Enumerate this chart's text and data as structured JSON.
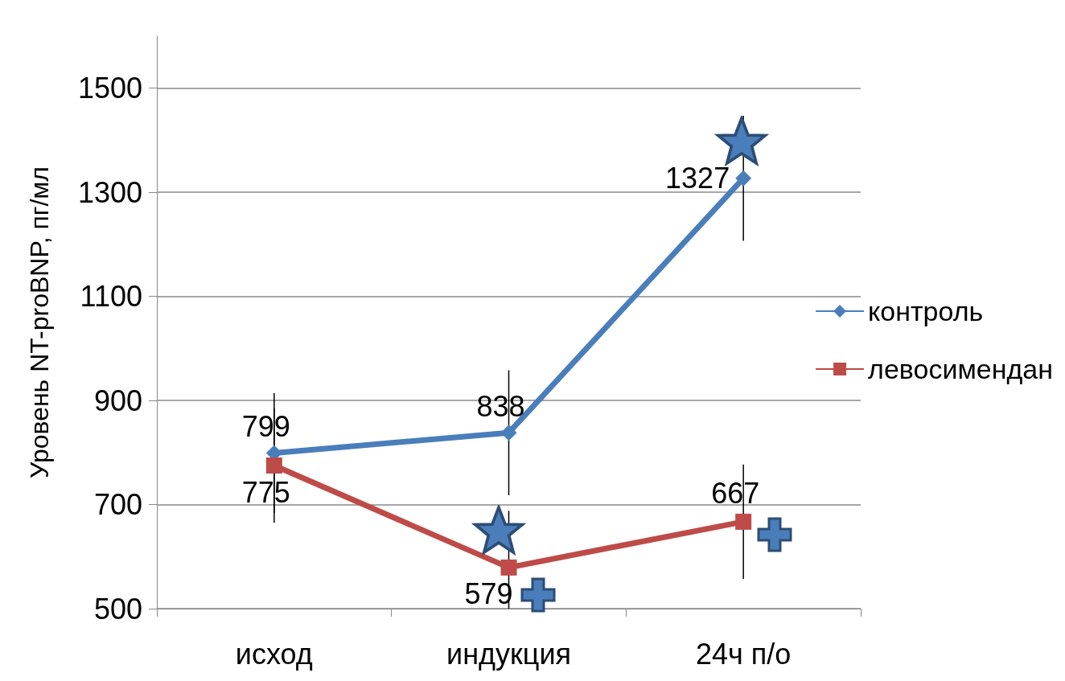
{
  "chart_data": {
    "type": "line",
    "ylabel": "Уровень NT-proBNP, пг/мл",
    "categories": [
      "исход",
      "индукция",
      "24ч п/о"
    ],
    "series": [
      {
        "name": "контроль",
        "color": "#4a7ebb",
        "marker": "diamond",
        "values": [
          799,
          838,
          1327
        ],
        "errors": [
          115,
          120,
          120
        ]
      },
      {
        "name": "левосимендан",
        "color": "#be4b48",
        "marker": "square",
        "values": [
          775,
          579,
          667
        ],
        "errors": [
          110,
          [
            500,
            688
          ],
          110
        ]
      }
    ],
    "ylim": [
      500,
      1600
    ],
    "yticks": [
      500,
      700,
      900,
      1100,
      1300,
      1500
    ],
    "grid": "y",
    "legend": "right",
    "data_labels": true
  }
}
